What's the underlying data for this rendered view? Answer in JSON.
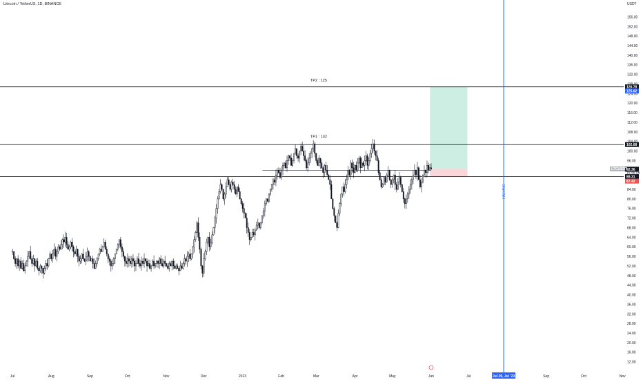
{
  "header": {
    "symbol_title": "Litecoin / TetherUS, 1D, BINANCE"
  },
  "colors": {
    "up": "#131722",
    "down": "#131722",
    "halving_line": "#2962ff",
    "target_zone": "#cdeee3",
    "stop_zone": "#f9d6d9",
    "price_line": "#131722"
  },
  "chart_data": {
    "type": "candlestick",
    "currency_label": "USDT",
    "ylim": [
      9.0,
      159.0
    ],
    "y_ticks": [
      12,
      16,
      20,
      24,
      28,
      32,
      36,
      40,
      44,
      48,
      52,
      56,
      60,
      64,
      68,
      72,
      76,
      80,
      84,
      88,
      92,
      96,
      100,
      104,
      108,
      112,
      116,
      120,
      124,
      128,
      132,
      136,
      140,
      144,
      148,
      152,
      156
    ],
    "x_ticks": [
      "Jul",
      "Aug",
      "Sep",
      "Oct",
      "Nov",
      "Dec",
      "2023",
      "Feb",
      "Mar",
      "Apr",
      "May",
      "Jun",
      "Jul",
      "Sep",
      "Oct",
      "Nov"
    ],
    "x_tick_days": [
      0,
      31,
      62,
      92,
      123,
      153,
      184,
      215,
      243,
      274,
      304,
      335,
      365,
      427,
      457,
      488
    ],
    "x_range_days": [
      -10,
      489
    ],
    "data_end_day": 335,
    "closes": [
      58,
      55,
      53,
      55,
      52,
      54,
      51,
      53,
      50,
      52,
      54,
      56,
      58,
      55,
      53,
      55,
      52,
      54,
      51,
      50,
      52,
      51,
      49,
      51,
      53,
      52,
      55,
      57,
      55,
      57,
      59,
      56,
      58,
      60,
      59,
      61,
      63,
      62,
      64,
      61,
      59,
      60,
      62,
      60,
      58,
      57,
      59,
      56,
      54,
      55,
      57,
      55,
      54,
      56,
      58,
      56,
      54,
      55,
      53,
      51,
      53,
      55,
      57,
      59,
      58,
      60,
      62,
      59,
      57,
      55,
      54,
      52,
      53,
      55,
      57,
      59,
      61,
      63,
      60,
      58,
      56,
      54,
      53,
      55,
      54,
      53,
      55,
      54,
      52,
      53,
      55,
      53,
      52,
      54,
      53,
      55,
      54,
      52,
      53,
      51,
      52,
      54,
      52,
      53,
      54,
      53,
      55,
      53,
      52,
      54,
      53,
      52,
      51,
      53,
      52,
      54,
      52,
      51,
      52,
      51,
      50,
      52,
      51,
      53,
      55,
      54,
      56,
      57,
      55,
      57,
      60,
      63,
      66,
      70,
      64,
      59,
      52,
      49,
      55,
      58,
      62,
      64,
      60,
      62,
      65,
      68,
      72,
      76,
      80,
      83,
      86,
      84,
      80,
      82,
      85,
      88,
      86,
      84,
      87,
      86,
      84,
      82,
      85,
      83,
      80,
      78,
      76,
      74,
      72,
      68,
      66,
      63,
      64,
      66,
      65,
      67,
      69,
      70,
      68,
      70,
      73,
      75,
      78,
      80,
      79,
      82,
      84,
      86,
      88,
      87,
      90,
      92,
      91,
      89,
      92,
      94,
      95,
      93,
      96,
      98,
      97,
      94,
      96,
      99,
      101,
      98,
      97,
      100,
      102,
      100,
      98,
      96,
      93,
      95,
      97,
      99,
      101,
      103,
      99,
      96,
      94,
      97,
      95,
      93,
      91,
      94,
      92,
      90,
      88,
      86,
      80,
      76,
      73,
      70,
      68,
      74,
      78,
      82,
      85,
      83,
      86,
      88,
      92,
      90,
      95,
      93,
      91,
      94,
      92,
      95,
      97,
      93,
      95,
      94,
      96,
      98,
      94,
      96,
      99,
      101,
      103,
      100,
      98,
      96,
      91,
      88,
      85,
      86,
      89,
      87,
      90,
      92,
      88,
      86,
      88,
      90,
      86,
      84,
      87,
      89,
      86,
      83,
      80,
      78,
      80,
      82,
      84,
      86,
      88,
      90,
      92,
      90,
      93,
      88,
      85,
      87,
      90,
      92,
      91,
      94,
      92,
      93,
      92.5
    ],
    "candles_per_day": 1,
    "first_candle_day": 0,
    "horizontal_levels": [
      {
        "price": 126.78,
        "label": "126.78",
        "bg": "#131722"
      },
      {
        "price": 102.68,
        "label": "102.68",
        "bg": "#131722"
      },
      {
        "price": 89.31,
        "label": "89.31",
        "bg": "#131722"
      }
    ],
    "axis_tags": [
      {
        "price": 126.78,
        "label": "126.78",
        "bg": "#131722"
      },
      {
        "price": 125.02,
        "label": "125.02",
        "bg": "#2962ff"
      },
      {
        "price": 102.68,
        "label": "102.68",
        "bg": "#131722"
      },
      {
        "price": 92.53,
        "label": "92.53",
        "bg": "#b2b5be"
      },
      {
        "price": 92.36,
        "label": "92.36",
        "bg": "#131722"
      },
      {
        "price": 89.31,
        "label": "89.31",
        "bg": "#131722"
      },
      {
        "price": 87.42,
        "label": "87.42",
        "bg": "#ef5350"
      }
    ],
    "symbol_tag": "LTCUSDT",
    "countdown": "15:46:06",
    "annotations": [
      {
        "text": "TP2 : 125",
        "price": 129.0,
        "day": 245
      },
      {
        "text": "TP1 : 102",
        "price": 105.5,
        "day": 245
      }
    ],
    "position": {
      "entry": 92.53,
      "target": 126.78,
      "stop": 89.31,
      "start_day": 334,
      "end_day": 364
    },
    "halving": {
      "day": 393,
      "label": "HALVING",
      "date_label": "Jul 29, Jul '23"
    },
    "support_line": {
      "price": 92.0,
      "start_day": 200,
      "end_day": 335
    },
    "clock_marker_day": 335
  }
}
